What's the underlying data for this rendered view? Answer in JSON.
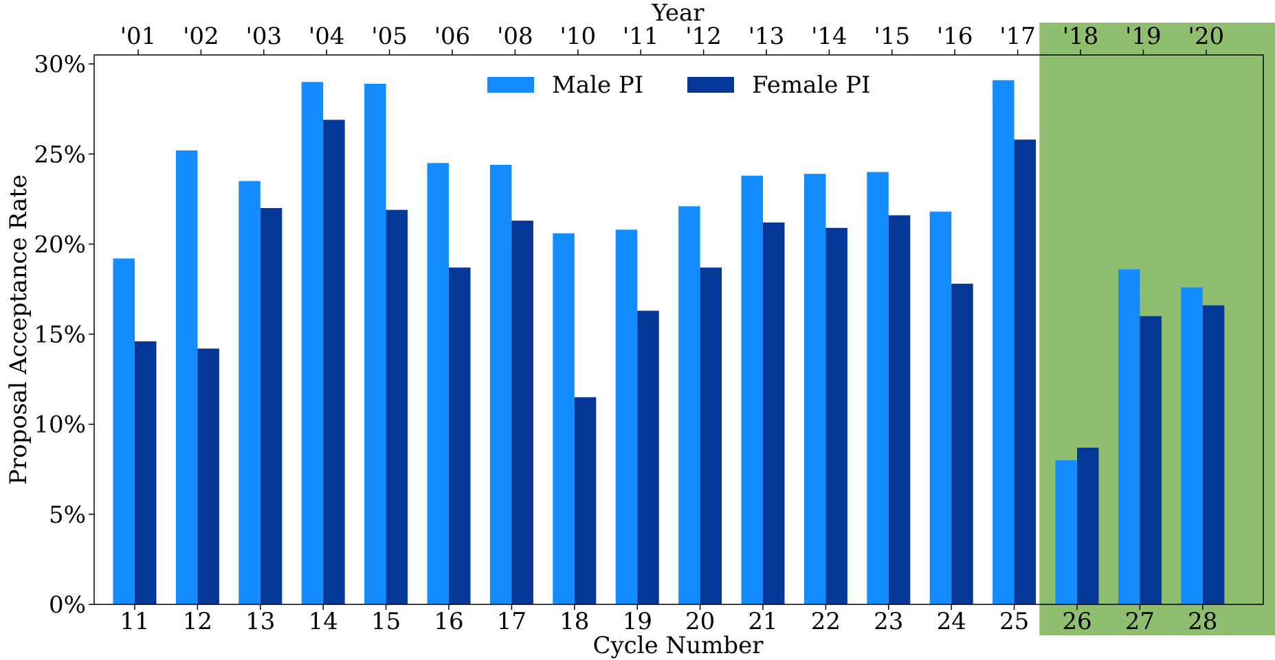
{
  "chart_data": {
    "type": "bar",
    "xlabel": "Cycle Number",
    "ylabel": "Proposal Acceptance Rate",
    "top_axis_label": "Year",
    "categories": [
      "11",
      "12",
      "13",
      "14",
      "15",
      "16",
      "17",
      "18",
      "19",
      "20",
      "21",
      "22",
      "23",
      "24",
      "25",
      "26",
      "27",
      "28"
    ],
    "top_tick_labels": [
      "'01",
      "'02",
      "'03",
      "'04",
      "'05",
      "'06",
      "'08",
      "'10",
      "'11",
      "'12",
      "'13",
      "'14",
      "'15",
      "'16",
      "'17",
      "'18",
      "'19",
      "'20"
    ],
    "y_tick_labels": [
      "0%",
      "5%",
      "10%",
      "15%",
      "20%",
      "25%",
      "30%"
    ],
    "ylim": [
      0,
      30.5
    ],
    "y_unit": "%",
    "series": [
      {
        "name": "Male PI",
        "color": "#148cff",
        "values": [
          19.2,
          25.2,
          23.5,
          29.0,
          28.9,
          24.5,
          24.4,
          20.6,
          20.8,
          22.1,
          23.8,
          23.9,
          24.0,
          21.8,
          29.1,
          8.0,
          18.6,
          17.6
        ]
      },
      {
        "name": "Female PI",
        "color": "#053796",
        "values": [
          14.6,
          14.2,
          22.0,
          26.9,
          21.9,
          18.7,
          21.3,
          11.5,
          16.3,
          18.7,
          21.2,
          20.9,
          21.6,
          17.8,
          25.8,
          8.7,
          16.0,
          16.6
        ]
      }
    ],
    "highlight": {
      "from_category": "26",
      "to_category": "28",
      "color": "#8fbf6e"
    },
    "legend_position": "top-center",
    "grid": false
  }
}
